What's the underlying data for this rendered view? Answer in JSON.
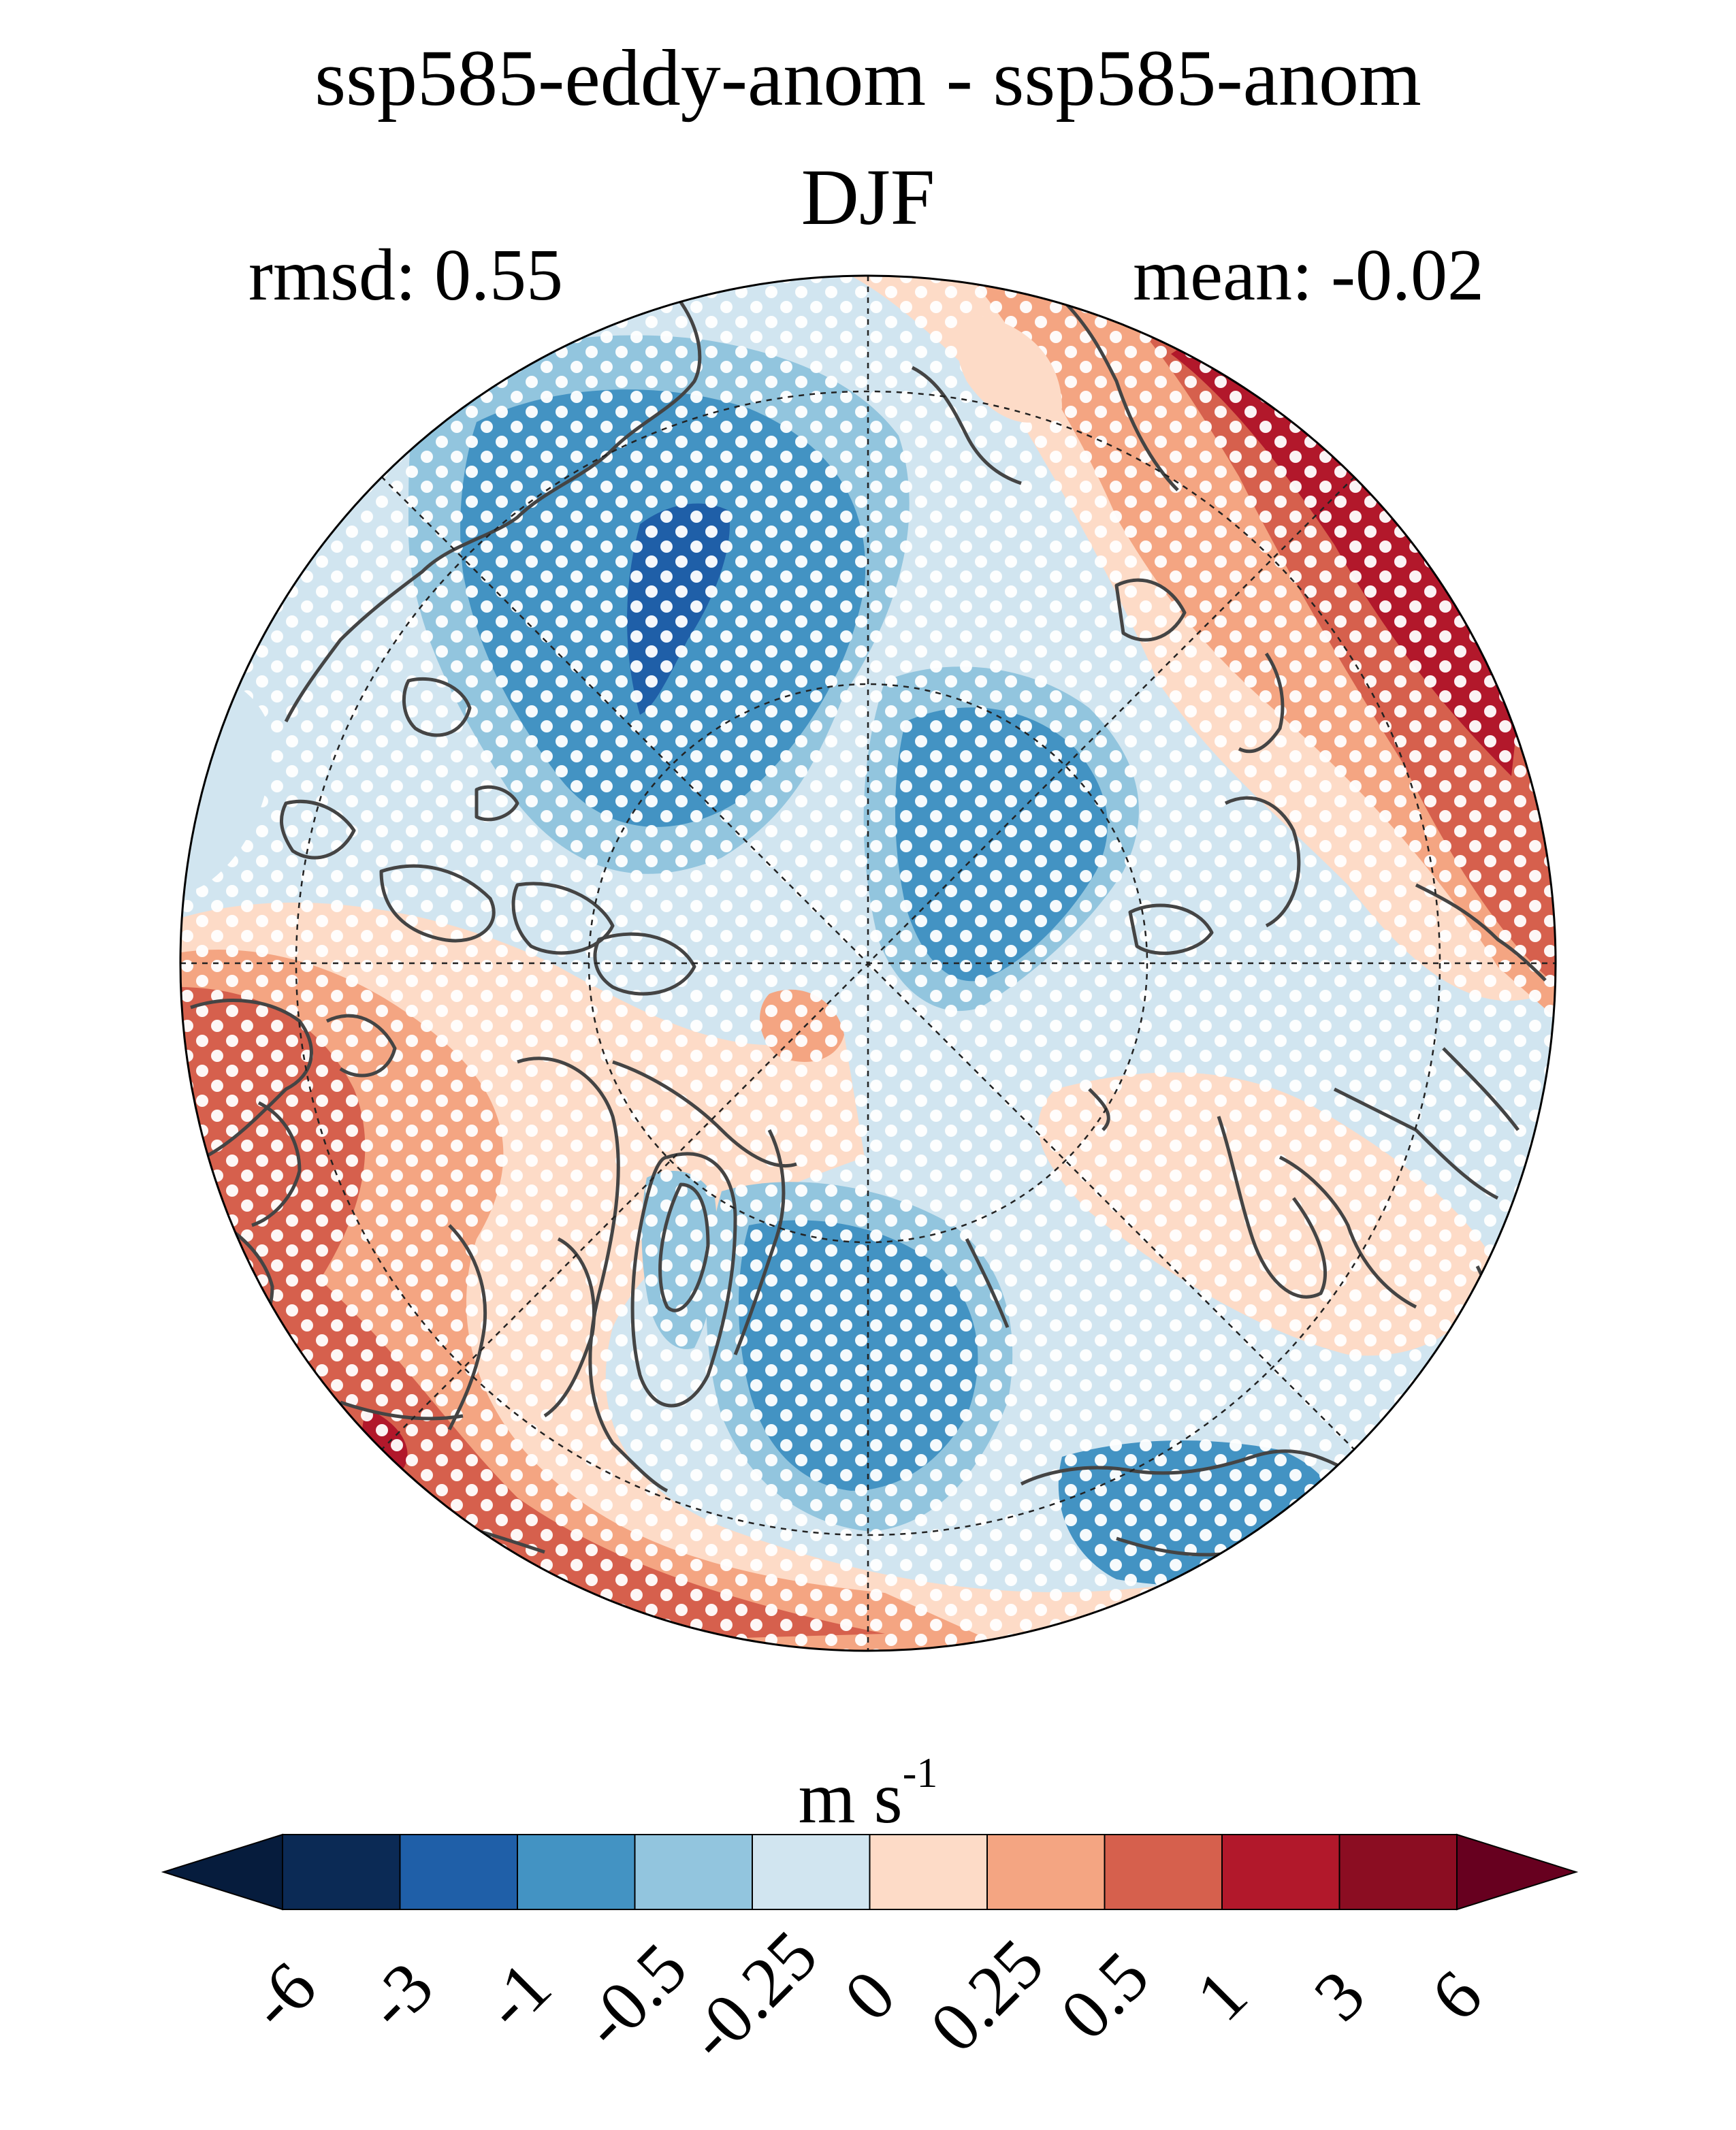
{
  "title": "ssp585-eddy-anom - ssp585-anom",
  "season": "DJF",
  "stats": {
    "rmsd": "rmsd: 0.55",
    "mean": "mean: -0.02"
  },
  "units": {
    "base": "m s",
    "exponent": "-1"
  },
  "colorbar": {
    "levels": [
      "-6",
      "-3",
      "-1",
      "-0.5",
      "-0.25",
      "0",
      "0.25",
      "0.5",
      "1",
      "3",
      "6"
    ],
    "colors": [
      "#0b2a55",
      "#1f5fa8",
      "#4393c3",
      "#92c5de",
      "#d1e5f0",
      "#fddbc7",
      "#f4a582",
      "#d6604d",
      "#b2182b",
      "#8b0d22",
      "#67001f",
      "#061c3d"
    ],
    "extend": "both"
  },
  "map": {
    "projection": "north polar stereographic",
    "graticule": "dashed",
    "stippling": "white dots",
    "coastlines": "dark gray"
  }
}
